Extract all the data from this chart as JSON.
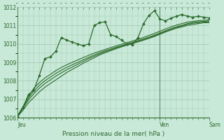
{
  "bg_color": "#c8e8d8",
  "plot_bg": "#c8e8d8",
  "grid_color": "#a0c8b0",
  "line_color": "#2d6b2d",
  "title": "Pression niveau de la mer( hPa )",
  "ylim": [
    1006,
    1012
  ],
  "yticks": [
    1006,
    1007,
    1008,
    1009,
    1010,
    1011,
    1012
  ],
  "xtick_labels": [
    "Jeu",
    "",
    "Ven",
    "",
    "Sam"
  ],
  "xtick_positions": [
    0,
    0.37,
    0.74,
    0.87,
    1.0
  ],
  "vline_positions": [
    0.0,
    0.74,
    1.0
  ],
  "series_smooth": [
    [
      1006.05,
      1006.4,
      1006.8,
      1007.1,
      1007.4,
      1007.65,
      1007.85,
      1008.05,
      1008.25,
      1008.45,
      1008.62,
      1008.78,
      1008.95,
      1009.1,
      1009.25,
      1009.4,
      1009.52,
      1009.63,
      1009.74,
      1009.84,
      1009.93,
      1010.02,
      1010.11,
      1010.2,
      1010.3,
      1010.4,
      1010.52,
      1010.64,
      1010.75,
      1010.85,
      1010.92,
      1011.0,
      1011.05,
      1011.1,
      1011.15,
      1011.15
    ],
    [
      1006.05,
      1006.5,
      1006.95,
      1007.3,
      1007.6,
      1007.85,
      1008.05,
      1008.25,
      1008.43,
      1008.6,
      1008.75,
      1008.9,
      1009.05,
      1009.2,
      1009.33,
      1009.46,
      1009.58,
      1009.68,
      1009.78,
      1009.87,
      1009.96,
      1010.05,
      1010.14,
      1010.23,
      1010.33,
      1010.44,
      1010.56,
      1010.68,
      1010.79,
      1010.89,
      1010.97,
      1011.06,
      1011.12,
      1011.15,
      1011.18,
      1011.2
    ],
    [
      1006.1,
      1006.55,
      1007.05,
      1007.45,
      1007.75,
      1008.0,
      1008.2,
      1008.4,
      1008.57,
      1008.73,
      1008.87,
      1009.0,
      1009.14,
      1009.27,
      1009.4,
      1009.52,
      1009.63,
      1009.72,
      1009.82,
      1009.91,
      1010.0,
      1010.09,
      1010.18,
      1010.27,
      1010.37,
      1010.48,
      1010.6,
      1010.72,
      1010.83,
      1010.93,
      1011.01,
      1011.1,
      1011.16,
      1011.2,
      1011.22,
      1011.25
    ],
    [
      1006.1,
      1006.6,
      1007.15,
      1007.6,
      1007.9,
      1008.15,
      1008.35,
      1008.55,
      1008.72,
      1008.87,
      1009.0,
      1009.13,
      1009.26,
      1009.38,
      1009.5,
      1009.6,
      1009.7,
      1009.8,
      1009.89,
      1009.98,
      1010.07,
      1010.16,
      1010.25,
      1010.35,
      1010.46,
      1010.57,
      1010.69,
      1010.81,
      1010.92,
      1011.02,
      1011.1,
      1011.18,
      1011.22,
      1011.26,
      1011.28,
      1011.3
    ]
  ],
  "series_marker": [
    1006.05,
    1006.55,
    1007.25,
    1007.5,
    1008.3,
    1009.2,
    1009.3,
    1009.6,
    1010.35,
    1010.2,
    1010.1,
    1010.0,
    1009.9,
    1010.0,
    1011.0,
    1011.15,
    1011.2,
    1010.5,
    1010.4,
    1010.2,
    1010.0,
    1009.95,
    1010.35,
    1011.1,
    1011.55,
    1011.8,
    1011.35,
    1011.25,
    1011.4,
    1011.5,
    1011.6,
    1011.5,
    1011.45,
    1011.5,
    1011.45,
    1011.4
  ],
  "marker": "D",
  "marker_size": 2.0,
  "linewidth_smooth": 0.8,
  "linewidth_marker": 0.9
}
